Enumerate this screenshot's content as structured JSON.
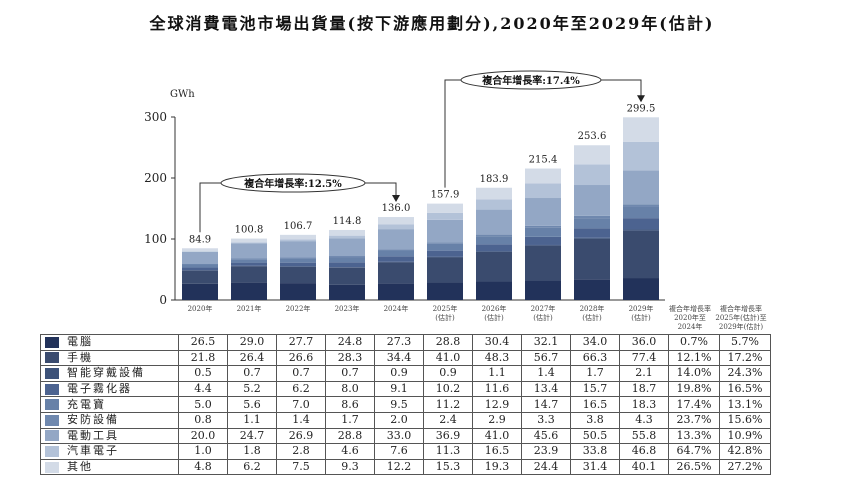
{
  "title": "全球消費電池市場出貨量(按下游應用劃分),2020年至2029年(估計)",
  "chart_data": {
    "type": "bar",
    "stacked": true,
    "title": "全球消費電池市場出貨量(按下游應用劃分),2020年至2029年(估計)",
    "ylabel": "GWh",
    "ylim": [
      0,
      300
    ],
    "yticks": [
      "0",
      "100",
      "200",
      "300"
    ],
    "categories": [
      "2020年",
      "2021年",
      "2022年",
      "2023年",
      "2024年",
      "2025年\n(估計)",
      "2026年\n(估計)",
      "2027年\n(估計)",
      "2028年\n(估計)",
      "2029年\n(估計)"
    ],
    "totals": [
      "84.9",
      "100.8",
      "106.7",
      "114.8",
      "136.0",
      "157.9",
      "183.9",
      "215.4",
      "253.6",
      "299.5"
    ],
    "series": [
      {
        "name": "電腦",
        "color": "#22325a",
        "values": [
          26.5,
          29.0,
          27.7,
          24.8,
          27.3,
          28.8,
          30.4,
          32.1,
          34.0,
          36.0
        ],
        "cagr": [
          "0.7%",
          "5.7%"
        ]
      },
      {
        "name": "手機",
        "color": "#3a4b6e",
        "values": [
          21.8,
          26.4,
          26.6,
          28.3,
          34.4,
          41.0,
          48.3,
          56.7,
          66.3,
          77.4
        ],
        "cagr": [
          "12.1%",
          "17.2%"
        ]
      },
      {
        "name": "智能穿戴設備",
        "color": "#3d5279",
        "values": [
          0.5,
          0.7,
          0.7,
          0.7,
          0.9,
          0.9,
          1.1,
          1.4,
          1.7,
          2.1
        ],
        "cagr": [
          "14.0%",
          "24.3%"
        ]
      },
      {
        "name": "電子霧化器",
        "color": "#4c6390",
        "values": [
          4.4,
          5.2,
          6.2,
          8.0,
          9.1,
          10.2,
          11.6,
          13.4,
          15.7,
          18.7
        ],
        "cagr": [
          "19.8%",
          "16.5%"
        ]
      },
      {
        "name": "充電寶",
        "color": "#6781a8",
        "values": [
          5.0,
          5.6,
          7.0,
          8.6,
          9.5,
          11.2,
          12.9,
          14.7,
          16.5,
          18.3
        ],
        "cagr": [
          "17.4%",
          "13.1%"
        ]
      },
      {
        "name": "安防設備",
        "color": "#6f88ae",
        "values": [
          0.8,
          1.1,
          1.4,
          1.7,
          2.0,
          2.4,
          2.9,
          3.3,
          3.8,
          4.3
        ],
        "cagr": [
          "23.7%",
          "15.6%"
        ]
      },
      {
        "name": "電動工具",
        "color": "#93a7c5",
        "values": [
          20.0,
          24.7,
          26.9,
          28.8,
          33.0,
          36.9,
          41.0,
          45.6,
          50.5,
          55.8
        ],
        "cagr": [
          "13.3%",
          "10.9%"
        ]
      },
      {
        "name": "汽車電子",
        "color": "#b3c2d8",
        "values": [
          1.0,
          1.8,
          2.8,
          4.6,
          7.6,
          11.3,
          16.5,
          23.9,
          33.8,
          46.8
        ],
        "cagr": [
          "64.7%",
          "42.8%"
        ]
      },
      {
        "name": "其他",
        "color": "#d3dbe7",
        "values": [
          4.8,
          6.2,
          7.5,
          9.3,
          12.2,
          15.3,
          19.3,
          24.4,
          31.4,
          40.1
        ],
        "cagr": [
          "26.5%",
          "27.2%"
        ]
      }
    ],
    "cagr_headers": [
      "複合年增長率\n2020年至\n2024年",
      "複合年增長率\n2025年(估計)至\n2029年(估計)"
    ],
    "annotations": [
      "複合年增長率:12.5%",
      "複合年增長率:17.4%"
    ]
  }
}
